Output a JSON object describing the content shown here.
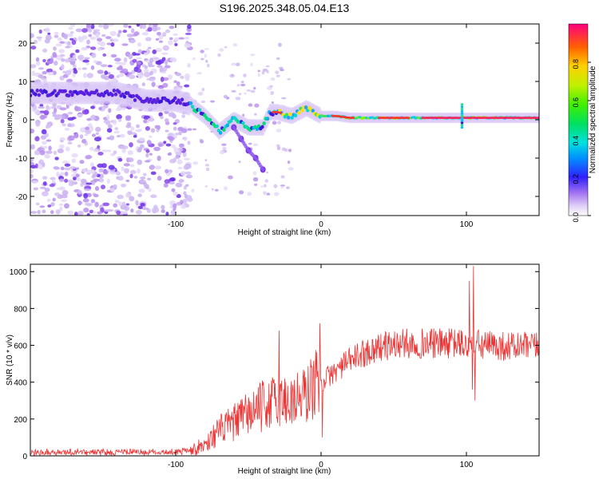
{
  "title": "S196.2025.348.05.04.E13",
  "chart_data": [
    {
      "type": "heatmap",
      "xlabel": "Height of straight line (km)",
      "ylabel": "Frequency (Hz)",
      "xlim": [
        -200,
        150
      ],
      "ylim": [
        -25,
        25
      ],
      "xticks": [
        -100,
        0,
        100
      ],
      "yticks": [
        -20,
        -10,
        0,
        10,
        20
      ],
      "colorbar": {
        "label": "Normalized spectral amplitude",
        "range": [
          0,
          1
        ],
        "ticks": [
          0.0,
          0.2,
          0.4,
          0.6,
          0.8
        ]
      },
      "ridge": [
        {
          "x": -185,
          "y": 7
        },
        {
          "x": -160,
          "y": 7
        },
        {
          "x": -140,
          "y": 7
        },
        {
          "x": -120,
          "y": 5
        },
        {
          "x": -100,
          "y": 5
        },
        {
          "x": -90,
          "y": 4
        },
        {
          "x": -80,
          "y": 1
        },
        {
          "x": -70,
          "y": -3
        },
        {
          "x": -60,
          "y": 0
        },
        {
          "x": -50,
          "y": -2
        },
        {
          "x": -40,
          "y": -2
        },
        {
          "x": -35,
          "y": 2
        },
        {
          "x": -30,
          "y": 2
        },
        {
          "x": -20,
          "y": 1
        },
        {
          "x": -10,
          "y": 3
        },
        {
          "x": 0,
          "y": 1
        },
        {
          "x": 10,
          "y": 1
        },
        {
          "x": 20,
          "y": 0.5
        },
        {
          "x": 50,
          "y": 0.5
        },
        {
          "x": 100,
          "y": 0.5
        },
        {
          "x": 150,
          "y": 0.5
        }
      ],
      "branch": [
        {
          "x": -60,
          "y": -2
        },
        {
          "x": -55,
          "y": -5
        },
        {
          "x": -50,
          "y": -8
        },
        {
          "x": -45,
          "y": -10
        },
        {
          "x": -40,
          "y": -13
        }
      ]
    },
    {
      "type": "line",
      "xlabel": "Height of straight line (km)",
      "ylabel": "SNR (10 * v/v)",
      "xlim": [
        -200,
        150
      ],
      "ylim": [
        0,
        1040
      ],
      "xticks": [
        -100,
        0,
        100
      ],
      "yticks": [
        0,
        200,
        400,
        600,
        800,
        1000
      ],
      "color": "#ee3333",
      "series": [
        {
          "name": "SNR",
          "x": [
            -200,
            -150,
            -100,
            -90,
            -80,
            -70,
            -60,
            -50,
            -40,
            -30,
            -20,
            -10,
            -5,
            0,
            10,
            20,
            30,
            40,
            50,
            60,
            80,
            95,
            100,
            103,
            105,
            110,
            130,
            150
          ],
          "values": [
            20,
            20,
            20,
            30,
            60,
            140,
            180,
            230,
            270,
            300,
            300,
            330,
            390,
            400,
            460,
            520,
            560,
            590,
            605,
            610,
            610,
            610,
            600,
            580,
            610,
            600,
            595,
            590
          ]
        }
      ],
      "annotations": [
        {
          "x": -29,
          "value": 680
        },
        {
          "x": -1,
          "value": 720
        },
        {
          "x": 1,
          "value": 100
        },
        {
          "x": 102,
          "value": 950
        },
        {
          "x": 104,
          "value": 360
        },
        {
          "x": 105,
          "value": 1030
        },
        {
          "x": 106,
          "value": 300
        }
      ]
    }
  ]
}
